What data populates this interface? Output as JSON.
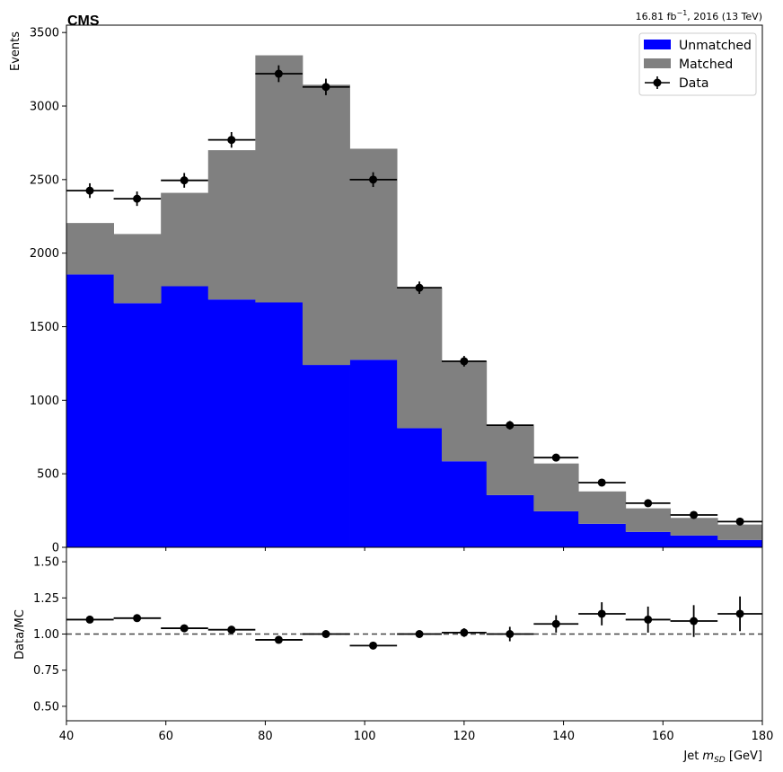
{
  "header": {
    "experiment": "CMS",
    "lumi_value": "16.81 fb",
    "lumi_exponent": "−1",
    "lumi_rest": ", 2016 (13 TeV)"
  },
  "chart_data": [
    {
      "type": "bar",
      "stacked": true,
      "xlim": [
        40,
        180
      ],
      "ylim": [
        0,
        3550
      ],
      "ylabel": "Events",
      "xticks": [
        40,
        60,
        80,
        100,
        120,
        140,
        160,
        180
      ],
      "yticks": [
        0,
        500,
        1000,
        1500,
        2000,
        2500,
        3000,
        3500
      ],
      "bin_edges": [
        40,
        49.5,
        59,
        68.5,
        78,
        87.5,
        97,
        106.5,
        115.5,
        124.5,
        134,
        143,
        152.5,
        161.5,
        171,
        180
      ],
      "series": [
        {
          "name": "Unmatched",
          "color": "#0000ff",
          "values": [
            1855,
            1660,
            1775,
            1685,
            1665,
            1240,
            1275,
            810,
            585,
            355,
            245,
            160,
            105,
            80,
            50
          ]
        },
        {
          "name": "Matched",
          "color": "#808080",
          "values": [
            350,
            470,
            635,
            1015,
            1680,
            1905,
            1435,
            955,
            680,
            470,
            325,
            220,
            160,
            120,
            105
          ]
        }
      ],
      "data_points": {
        "name": "Data",
        "color": "#000000",
        "x": [
          44.7,
          54.2,
          63.7,
          73.2,
          82.7,
          92.2,
          101.7,
          111,
          120,
          129.2,
          138.5,
          147.7,
          157,
          166.2,
          175.5
        ],
        "y": [
          2425,
          2370,
          2495,
          2770,
          3220,
          3130,
          2500,
          1765,
          1265,
          830,
          610,
          440,
          300,
          220,
          175
        ],
        "yerr": [
          50,
          49,
          50,
          53,
          57,
          56,
          50,
          42,
          36,
          29,
          25,
          21,
          17,
          15,
          13
        ]
      },
      "legend": {
        "position": "top-right",
        "entries": [
          "Unmatched",
          "Matched",
          "Data"
        ]
      }
    },
    {
      "type": "scatter",
      "xlim": [
        40,
        180
      ],
      "ylim": [
        0.4,
        1.6
      ],
      "xlabel": "Jet m_SD [GeV]",
      "ylabel": "Data/MC",
      "xticks": [
        40,
        60,
        80,
        100,
        120,
        140,
        160,
        180
      ],
      "yticks": [
        0.5,
        0.75,
        1.0,
        1.25,
        1.5
      ],
      "ytick_labels": [
        "0.50",
        "0.75",
        "1.00",
        "1.25",
        "1.50"
      ],
      "reference_line": 1.0,
      "x": [
        44.7,
        54.2,
        63.7,
        73.2,
        82.7,
        92.2,
        101.7,
        111,
        120,
        129.2,
        138.5,
        147.7,
        157,
        166.2,
        175.5
      ],
      "y": [
        1.1,
        1.11,
        1.04,
        1.03,
        0.96,
        1.0,
        0.92,
        1.0,
        1.01,
        1.0,
        1.07,
        1.14,
        1.1,
        1.09,
        1.14
      ],
      "yerr": [
        0.02,
        0.02,
        0.02,
        0.02,
        0.02,
        0.02,
        0.02,
        0.02,
        0.03,
        0.05,
        0.06,
        0.08,
        0.09,
        0.11,
        0.12
      ]
    }
  ]
}
